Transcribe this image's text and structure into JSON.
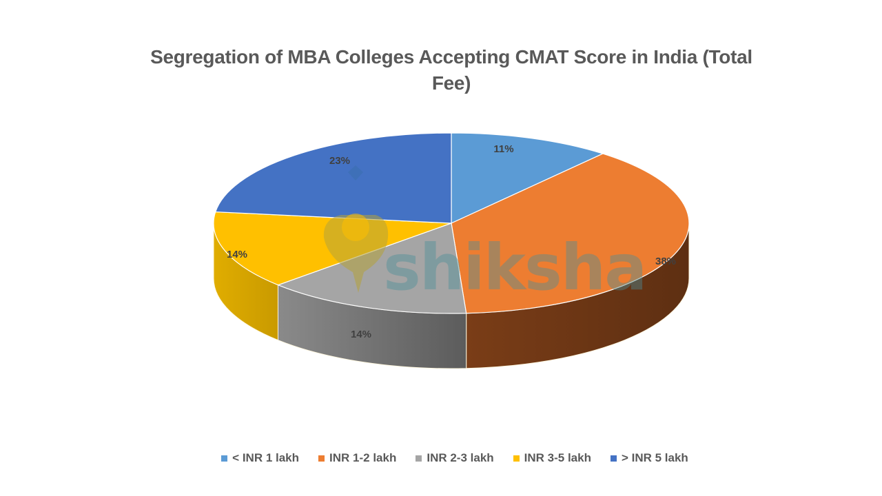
{
  "title_line1": "Segregation of MBA Colleges Accepting CMAT Score in India (Total",
  "title_line2": "Fee)",
  "watermark": "shiksha",
  "chart_data": {
    "type": "pie",
    "title": "Segregation of MBA Colleges Accepting CMAT Score in India (Total Fee)",
    "style": "3d-pie",
    "categories": [
      "< INR 1 lakh",
      "INR 1-2 lakh",
      "INR 2-3 lakh",
      "INR 3-5 lakh",
      "> INR 5 lakh"
    ],
    "values": [
      11,
      38,
      14,
      14,
      23
    ],
    "labels": [
      "11%",
      "38%",
      "14%",
      "14%",
      "23%"
    ],
    "colors": [
      "#5b9bd5",
      "#ed7d31",
      "#a5a5a5",
      "#ffc000",
      "#4472c4"
    ],
    "legend_position": "bottom",
    "start_angle": "12 o'clock",
    "direction": "clockwise"
  },
  "legend": [
    {
      "label": "< INR 1 lakh",
      "color": "#5b9bd5"
    },
    {
      "label": "INR 1-2 lakh",
      "color": "#ed7d31"
    },
    {
      "label": "INR 2-3 lakh",
      "color": "#a5a5a5"
    },
    {
      "label": "INR 3-5 lakh",
      "color": "#ffc000"
    },
    {
      "label": "> INR 5 lakh",
      "color": "#4472c4"
    }
  ]
}
